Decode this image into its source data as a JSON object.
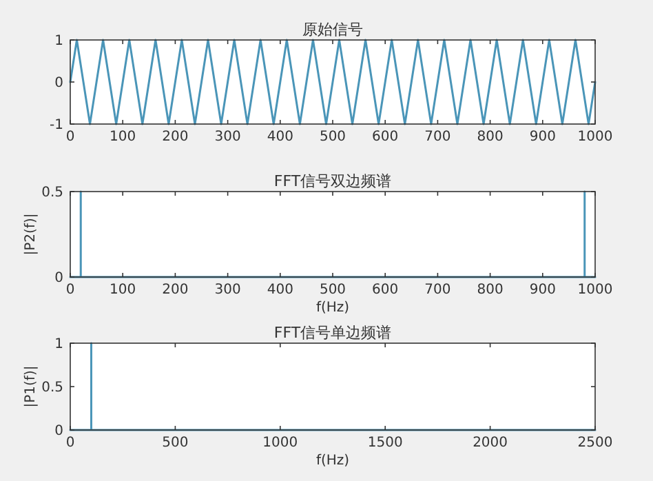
{
  "chart_data": [
    {
      "type": "line",
      "title": "原始信号",
      "xlim": [
        0,
        1000
      ],
      "xticks": [
        0,
        100,
        200,
        300,
        400,
        500,
        600,
        700,
        800,
        900,
        1000
      ],
      "ylim": [
        -1,
        1
      ],
      "yticks": [
        -1,
        0,
        1
      ],
      "grid": false,
      "series": [
        {
          "color": "#4a95b8",
          "x": [
            0,
            12.5,
            25,
            37.5,
            50,
            62.5,
            75,
            87.5,
            100,
            112.5,
            125,
            137.5,
            150,
            162.5,
            175,
            187.5,
            200,
            212.5,
            225,
            237.5,
            250,
            262.5,
            275,
            287.5,
            300,
            312.5,
            325,
            337.5,
            350,
            362.5,
            375,
            387.5,
            400,
            412.5,
            425,
            437.5,
            450,
            462.5,
            475,
            487.5,
            500,
            512.5,
            525,
            537.5,
            550,
            562.5,
            575,
            587.5,
            600,
            612.5,
            625,
            637.5,
            650,
            662.5,
            675,
            687.5,
            700,
            712.5,
            725,
            737.5,
            750,
            762.5,
            775,
            787.5,
            800,
            812.5,
            825,
            837.5,
            850,
            862.5,
            875,
            887.5,
            900,
            912.5,
            925,
            937.5,
            950,
            962.5,
            975,
            987.5,
            1000
          ],
          "values": [
            0,
            1,
            0,
            -1,
            0,
            1,
            0,
            -1,
            0,
            1,
            0,
            -1,
            0,
            1,
            0,
            -1,
            0,
            1,
            0,
            -1,
            0,
            1,
            0,
            -1,
            0,
            1,
            0,
            -1,
            0,
            1,
            0,
            -1,
            0,
            1,
            0,
            -1,
            0,
            1,
            0,
            -1,
            0,
            1,
            0,
            -1,
            0,
            1,
            0,
            -1,
            0,
            1,
            0,
            -1,
            0,
            1,
            0,
            -1,
            0,
            1,
            0,
            -1,
            0,
            1,
            0,
            -1,
            0,
            1,
            0,
            -1,
            0,
            1,
            0,
            -1,
            0,
            1,
            0,
            -1,
            0,
            1,
            0,
            -1,
            0
          ]
        }
      ]
    },
    {
      "type": "line",
      "title": "FFT信号双边频谱",
      "xlabel": "f(Hz)",
      "ylabel": "|P2(f)|",
      "xlim": [
        0,
        1000
      ],
      "xticks": [
        0,
        100,
        200,
        300,
        400,
        500,
        600,
        700,
        800,
        900,
        1000
      ],
      "ylim": [
        0,
        0.5
      ],
      "yticks": [
        0,
        0.5
      ],
      "grid": false,
      "series": [
        {
          "color": "#4a95b8",
          "x": [
            0,
            20,
            20,
            20,
            980,
            980,
            980,
            1000
          ],
          "values": [
            0,
            0,
            0.5,
            0,
            0,
            0.5,
            0,
            0
          ]
        }
      ]
    },
    {
      "type": "line",
      "title": "FFT信号单边频谱",
      "xlabel": "f(Hz)",
      "ylabel": "|P1(f)|",
      "xlim": [
        0,
        2500
      ],
      "xticks": [
        0,
        500,
        1000,
        1500,
        2000,
        2500
      ],
      "ylim": [
        0,
        1
      ],
      "yticks": [
        0,
        0.5,
        1
      ],
      "grid": false,
      "series": [
        {
          "color": "#4a95b8",
          "x": [
            0,
            100,
            100,
            100,
            2500
          ],
          "values": [
            0,
            0,
            1,
            0,
            0
          ]
        }
      ]
    }
  ]
}
